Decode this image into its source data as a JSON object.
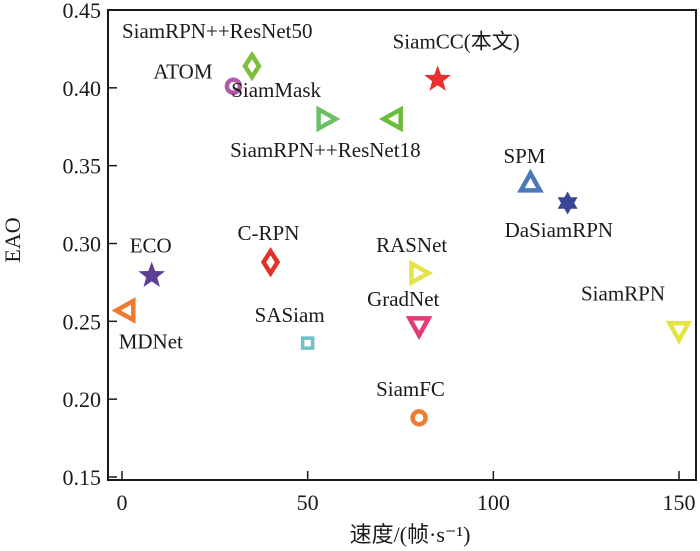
{
  "chart_data": {
    "type": "scatter",
    "title": "",
    "xlabel": "速度/(帧·s⁻¹)",
    "ylabel": "EAO",
    "xlim": [
      -3.9,
      154.5
    ],
    "ylim": [
      0.148,
      0.45
    ],
    "xticks": [
      0,
      50,
      100,
      150
    ],
    "xtick_labels": [
      "0",
      "50",
      "100",
      "150"
    ],
    "yticks": [
      0.15,
      0.2,
      0.25,
      0.3,
      0.35,
      0.4,
      0.45
    ],
    "ytick_labels": [
      "0.15",
      "0.20",
      "0.25",
      "0.30",
      "0.35",
      "0.40",
      "0.45"
    ],
    "grid": false,
    "legend": "none",
    "points": [
      {
        "name": "SiamRPN++ResNet50",
        "x": 35,
        "y": 0.414,
        "marker": "diamond",
        "color": "#7cbf3a",
        "label_pos": "top-left"
      },
      {
        "name": "ATOM",
        "x": 30,
        "y": 0.401,
        "marker": "circle",
        "color": "#b05aa8",
        "label_pos": "top-left"
      },
      {
        "name": "SiamCC(本文)",
        "x": 85,
        "y": 0.406,
        "marker": "star",
        "color": "#e8302e",
        "label_pos": "top"
      },
      {
        "name": "SiamMask",
        "x": 55,
        "y": 0.38,
        "marker": "triangle-right",
        "color": "#6cbf6a",
        "label_pos": "top"
      },
      {
        "name": "SiamRPN++ResNet18",
        "x": 73,
        "y": 0.38,
        "marker": "triangle-left",
        "color": "#6cbd3c",
        "label_pos": "bottom-left"
      },
      {
        "name": "SPM",
        "x": 110,
        "y": 0.339,
        "marker": "triangle-up",
        "color": "#4a78b8",
        "label_pos": "top"
      },
      {
        "name": "DaSiamRPN",
        "x": 120,
        "y": 0.326,
        "marker": "hexagram",
        "color": "#3a4596",
        "label_pos": "bottom"
      },
      {
        "name": "ECO",
        "x": 8,
        "y": 0.28,
        "marker": "star",
        "color": "#5e3f96",
        "label_pos": "top"
      },
      {
        "name": "MDNet",
        "x": 1,
        "y": 0.257,
        "marker": "triangle-left",
        "color": "#ef7a30",
        "label_pos": "bottom-right"
      },
      {
        "name": "C-RPN",
        "x": 40,
        "y": 0.288,
        "marker": "diamond",
        "color": "#e03228",
        "label_pos": "top"
      },
      {
        "name": "SASiam",
        "x": 50,
        "y": 0.236,
        "marker": "square",
        "color": "#6cc4c8",
        "label_pos": "top-left"
      },
      {
        "name": "RASNet",
        "x": 80,
        "y": 0.281,
        "marker": "triangle-right",
        "color": "#e4e44a",
        "label_pos": "top"
      },
      {
        "name": "GradNet",
        "x": 80,
        "y": 0.247,
        "marker": "triangle-down",
        "color": "#e63a78",
        "label_pos": "top"
      },
      {
        "name": "SiamFC",
        "x": 80,
        "y": 0.188,
        "marker": "circle",
        "color": "#ef7c30",
        "label_pos": "top"
      },
      {
        "name": "SiamRPN",
        "x": 150,
        "y": 0.244,
        "marker": "triangle-down",
        "color": "#e6e444",
        "label_pos": "top-left"
      }
    ]
  }
}
